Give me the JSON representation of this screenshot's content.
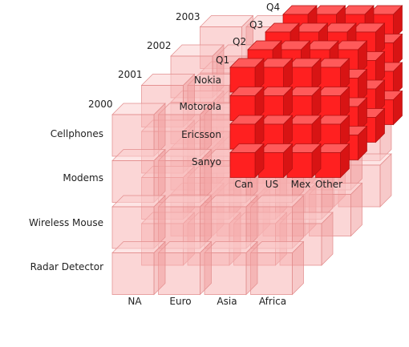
{
  "years": [
    "2000",
    "2001",
    "2002",
    "2003"
  ],
  "products": [
    "Cellphones",
    "Modems",
    "Wireless Mouse",
    "Radar Detector"
  ],
  "regions": [
    "NA",
    "Euro",
    "Asia",
    "Africa"
  ],
  "quarters": [
    "Q1",
    "Q2",
    "Q3",
    "Q4"
  ],
  "brands": [
    "Nokia",
    "Motorola",
    "Ericsson",
    "Sanyo"
  ],
  "countries": [
    "Can",
    "US",
    "Mex",
    "Other"
  ],
  "colors": {
    "highlight_face": "#ff2020",
    "highlight_top": "#ff5a5a",
    "highlight_side": "#d81414",
    "ghost_face": "#f8b4b4",
    "ghost_top": "#fbd0d0",
    "ghost_side": "#f09c9c",
    "ghost_edge": "#e28c8c",
    "highlight_edge": "#b01010"
  }
}
